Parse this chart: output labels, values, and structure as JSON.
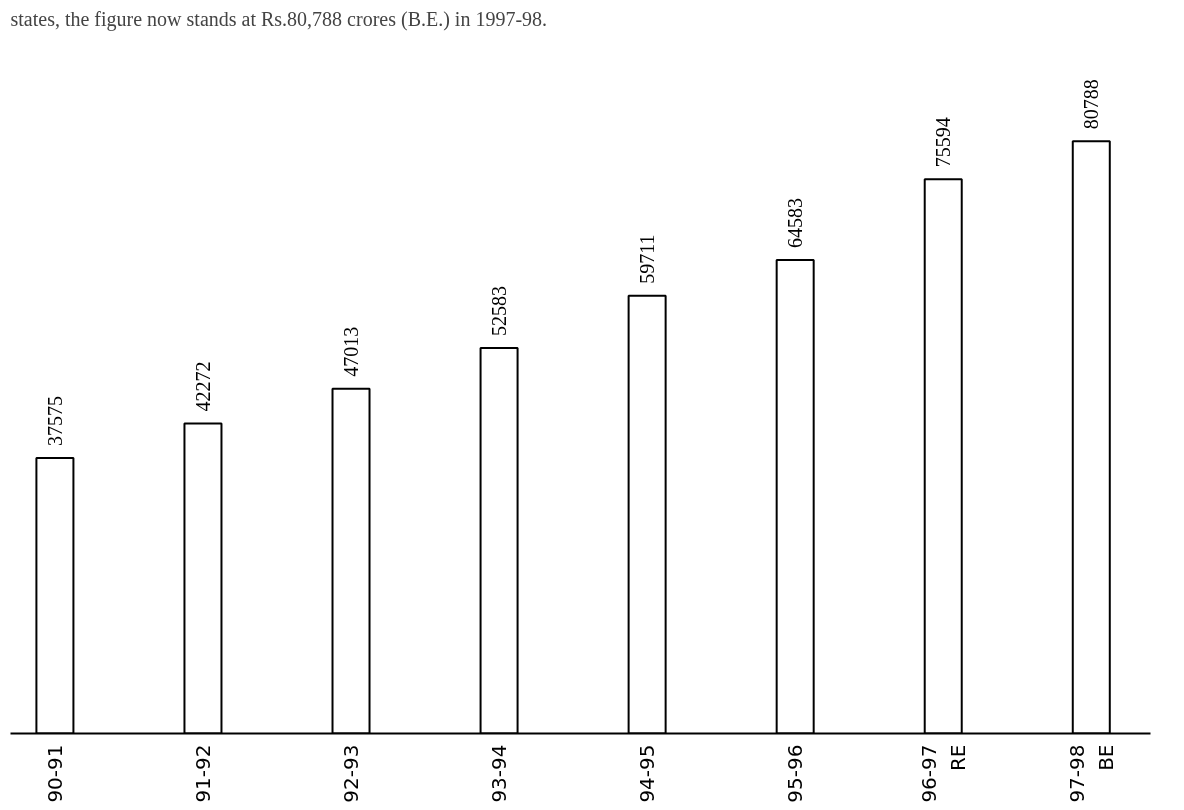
{
  "chart_data": {
    "type": "bar",
    "categories": [
      "90-91",
      "91-92",
      "92-93",
      "93-94",
      "94-95",
      "95-96",
      "96-97\nRE",
      "97-98\nBE"
    ],
    "values": [
      37575,
      42272,
      47013,
      52583,
      59711,
      64583,
      75594,
      80788
    ],
    "color": "#ffffff",
    "data_labels": true,
    "grid": false,
    "annotations": [
      "states, the figure now stands at Rs.80,788 crores (B.E.) in 1997-98."
    ]
  }
}
